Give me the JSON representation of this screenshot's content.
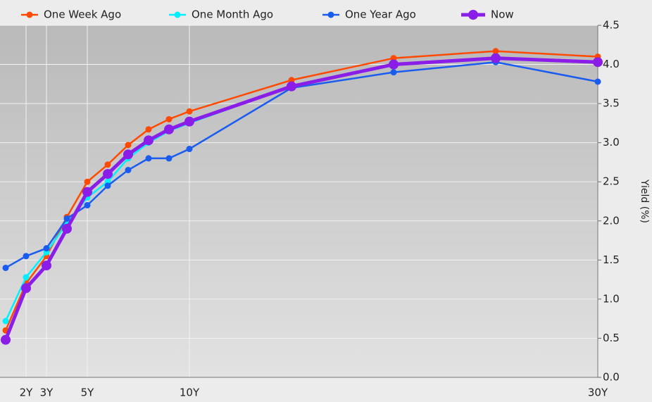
{
  "chart_data": {
    "type": "line",
    "x": [
      1,
      2,
      3,
      4,
      5,
      6,
      7,
      8,
      9,
      10,
      15,
      20,
      25,
      30
    ],
    "xlim": [
      1,
      30
    ],
    "xticks": [
      {
        "value": 2,
        "label": "2Y"
      },
      {
        "value": 3,
        "label": "3Y"
      },
      {
        "value": 5,
        "label": "5Y"
      },
      {
        "value": 10,
        "label": "10Y"
      },
      {
        "value": 30,
        "label": "30Y"
      }
    ],
    "ylim": [
      0,
      4.5
    ],
    "yticks": [
      {
        "value": 0,
        "label": "0.0"
      },
      0.5,
      {
        "value": 1,
        "label": "1.0"
      },
      1.5,
      {
        "value": 2,
        "label": "2.0"
      },
      2.5,
      {
        "value": 3,
        "label": "3.0"
      },
      3.5,
      {
        "value": 4,
        "label": "4.0"
      },
      4.5
    ],
    "y_label": "Yield (%)",
    "grid": true,
    "legend": "top",
    "series": [
      {
        "name": "One Week Ago",
        "color": "#ff4a00",
        "values": [
          0.6,
          1.2,
          1.55,
          2.05,
          2.5,
          2.72,
          2.97,
          3.17,
          3.3,
          3.4,
          3.8,
          4.08,
          4.17,
          4.1
        ]
      },
      {
        "name": "One Month Ago",
        "color": "#00f0ff",
        "values": [
          0.72,
          1.28,
          1.6,
          1.97,
          2.3,
          2.5,
          2.8,
          3.0,
          3.15,
          3.25,
          3.72,
          4.0,
          4.08,
          4.02
        ]
      },
      {
        "name": "One Year Ago",
        "color": "#1a5cf0",
        "values": [
          1.4,
          1.55,
          1.65,
          2.03,
          2.2,
          2.45,
          2.65,
          2.8,
          2.8,
          2.92,
          3.7,
          3.9,
          4.03,
          3.78
        ]
      },
      {
        "name": "Now",
        "color": "#8a1ee8",
        "values": [
          0.48,
          1.14,
          1.43,
          1.9,
          2.37,
          2.6,
          2.85,
          3.03,
          3.17,
          3.27,
          3.72,
          4.0,
          4.08,
          4.03
        ]
      }
    ]
  }
}
